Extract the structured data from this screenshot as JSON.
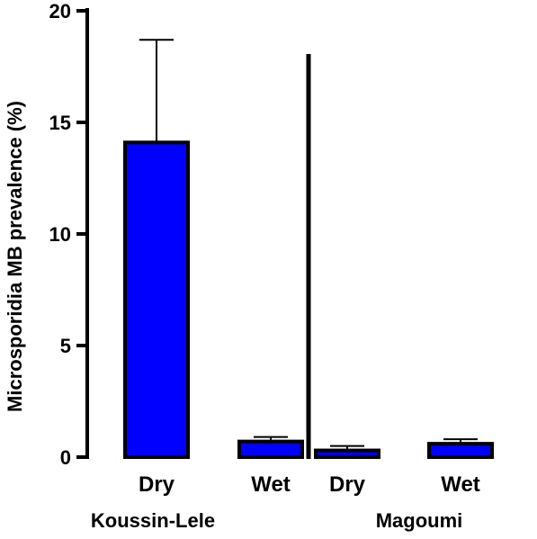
{
  "chart_data": {
    "type": "bar",
    "ylabel": "Microsporidia MB prevalence (%)",
    "ylim": [
      0,
      20
    ],
    "yticks": [
      0,
      5,
      10,
      15,
      20
    ],
    "groups": [
      {
        "name": "Koussin-Lele",
        "bars": [
          {
            "category": "Dry",
            "value": 14.1,
            "error_upper": 18.7
          },
          {
            "category": "Wet",
            "value": 0.7,
            "error_upper": 0.9
          }
        ]
      },
      {
        "name": "Magoumi",
        "bars": [
          {
            "category": "Dry",
            "value": 0.3,
            "error_upper": 0.5
          },
          {
            "category": "Wet",
            "value": 0.6,
            "error_upper": 0.8
          }
        ]
      }
    ],
    "bar_color": "#0000ff",
    "bar_outline": "#000000",
    "grid": false
  }
}
